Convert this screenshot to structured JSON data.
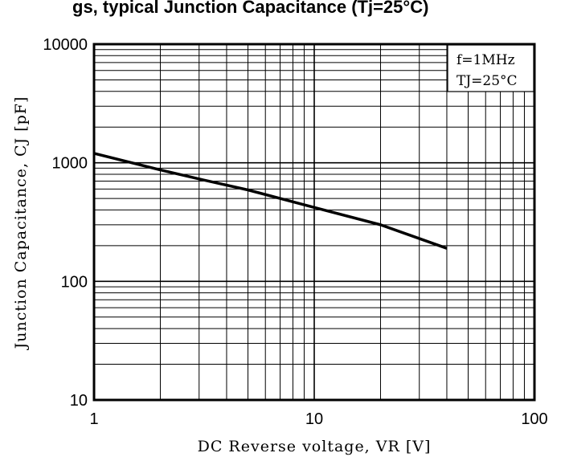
{
  "chart_data": {
    "type": "line",
    "title_fragment": "gs,  typical Junction Capacitance (Tj=25°C)",
    "xlabel": "DC  Reverse  voltage,  VR [V]",
    "ylabel": "Junction  Capacitance,  CJ [pF]",
    "x_scale": "log",
    "y_scale": "log",
    "xlim": [
      1,
      100
    ],
    "ylim": [
      10,
      10000
    ],
    "x_ticks": [
      "1",
      "10",
      "100"
    ],
    "y_ticks": [
      "10",
      "100",
      "1000",
      "10000"
    ],
    "grid": true,
    "annotations": [
      "f=1MHz",
      "TJ=25°C"
    ],
    "series": [
      {
        "x": [
          1,
          2,
          3,
          5,
          10,
          20,
          40
        ],
        "y": [
          1200,
          870,
          730,
          590,
          420,
          300,
          190
        ]
      }
    ]
  }
}
